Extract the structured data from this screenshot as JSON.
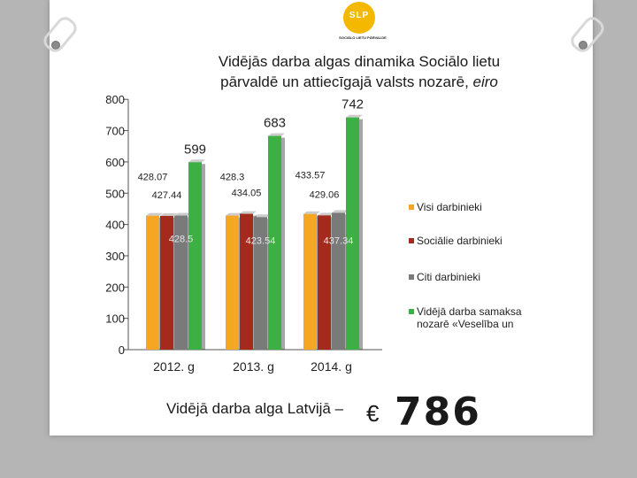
{
  "logo": {
    "letters": "SLP",
    "subtitle": "SOCIĀLO LIETU PĀRVALDE"
  },
  "title": {
    "line1": "Vidējās darba algas dinamika Sociālo lietu",
    "line2_prefix": "pārvaldē un attiecīgajā valsts nozarē, ",
    "line2_italic": "eiro"
  },
  "footer": {
    "text": "Vidējā darba alga Latvijā –",
    "currency": "€",
    "value": "786"
  },
  "chart_data": {
    "type": "bar",
    "categories": [
      "2012. g",
      "2013. g",
      "2014. g"
    ],
    "ylim": [
      0,
      800
    ],
    "yticks": [
      0,
      100,
      200,
      300,
      400,
      500,
      600,
      700,
      800
    ],
    "grid": false,
    "legend_position": "right",
    "series": [
      {
        "name": "Visi darbinieki",
        "values": [
          428.07,
          428.3,
          433.57
        ],
        "color": "#f5a623"
      },
      {
        "name": "Sociālie darbinieki",
        "values": [
          427.44,
          434.05,
          429.06
        ],
        "color": "#a52a1e"
      },
      {
        "name": "Citi darbinieki",
        "values": [
          428.5,
          423.54,
          437.34
        ],
        "color": "#7a7a7a"
      },
      {
        "name": "Vidējā  darba samaksa nozarē «Veselība un",
        "values": [
          599,
          683,
          742
        ],
        "color": "#3cb043"
      }
    ],
    "data_labels": [
      {
        "series": 0,
        "cat": 0,
        "text": "428.07",
        "dx": 0,
        "dy": -40
      },
      {
        "series": 0,
        "cat": 1,
        "text": "428.3",
        "dx": 0,
        "dy": -40
      },
      {
        "series": 0,
        "cat": 2,
        "text": "433.57",
        "dx": 0,
        "dy": -40
      },
      {
        "series": 1,
        "cat": 0,
        "text": "427.44",
        "dx": 0,
        "dy": -20
      },
      {
        "series": 1,
        "cat": 1,
        "text": "434.05",
        "dx": 0,
        "dy": -20
      },
      {
        "series": 1,
        "cat": 2,
        "text": "429.06",
        "dx": 0,
        "dy": -20
      },
      {
        "series": 2,
        "cat": 0,
        "text": "428.5",
        "dx": 0,
        "dy": 30
      },
      {
        "series": 2,
        "cat": 1,
        "text": "423.54",
        "dx": 0,
        "dy": 30
      },
      {
        "series": 2,
        "cat": 2,
        "text": "437.34",
        "dx": 0,
        "dy": 35
      },
      {
        "series": 3,
        "cat": 0,
        "text": "599",
        "dx": 0,
        "dy": -10
      },
      {
        "series": 3,
        "cat": 1,
        "text": "683",
        "dx": 0,
        "dy": -10
      },
      {
        "series": 3,
        "cat": 2,
        "text": "742",
        "dx": 0,
        "dy": -10
      }
    ],
    "legend_lines": [
      [
        "Visi darbinieki"
      ],
      [
        "Sociālie darbinieki"
      ],
      [
        "Citi darbinieki"
      ],
      [
        "Vidējā  darba samaksa",
        "nozarē «Veselība un"
      ]
    ]
  }
}
